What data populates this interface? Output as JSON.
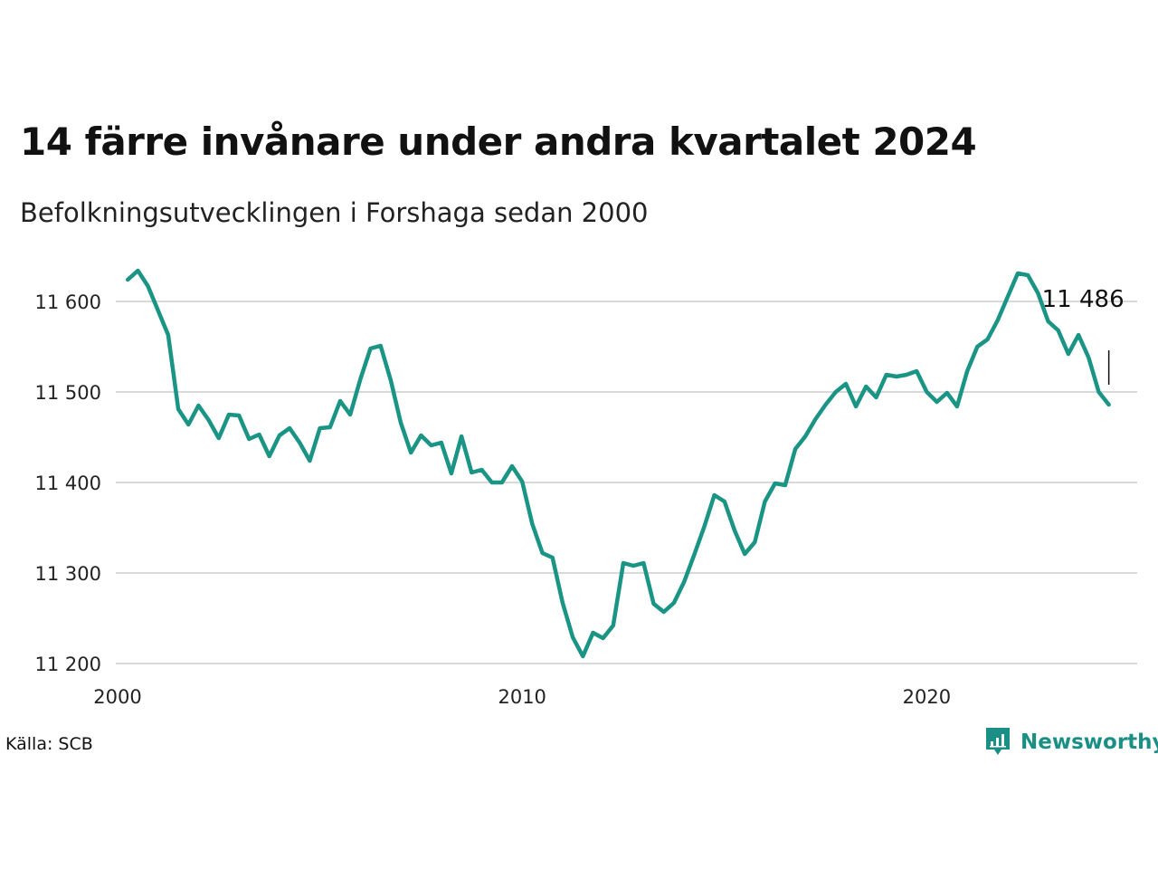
{
  "header": {
    "title": "14 färre invånare under andra kvartalet 2024",
    "subtitle": "Befolkningsutvecklingen i Forshaga sedan 2000"
  },
  "footer": {
    "source": "Källa: SCB",
    "brand": "Newsworthy",
    "brand_icon": "bar-chart-speech-bubble-icon"
  },
  "colors": {
    "line": "#1a9484",
    "grid": "#d9d9d9",
    "brand": "#1a8f85"
  },
  "chart_data": {
    "type": "line",
    "title": "14 färre invånare under andra kvartalet 2024",
    "subtitle": "Befolkningsutvecklingen i Forshaga sedan 2000",
    "x_unit": "quarter end (decimal year)",
    "xlim": [
      2000,
      2025
    ],
    "ylim": [
      11200,
      11640
    ],
    "y_ticks": [
      11200,
      11300,
      11400,
      11500,
      11600
    ],
    "y_tick_labels": [
      "11 200",
      "11 300",
      "11 400",
      "11 500",
      "11 600"
    ],
    "x_ticks": [
      2000,
      2010,
      2020
    ],
    "x_tick_labels": [
      "2000",
      "2010",
      "2020"
    ],
    "grid": "horizontal",
    "annotation": {
      "text": "11 486",
      "x": 2024.5,
      "y": 11486
    },
    "series": [
      {
        "x": [
          2000.25,
          2000.5,
          2000.75,
          2001.0,
          2001.25,
          2001.5,
          2001.75,
          2002.0,
          2002.25,
          2002.5,
          2002.75,
          2003.0,
          2003.25,
          2003.5,
          2003.75,
          2004.0,
          2004.25,
          2004.5,
          2004.75,
          2005.0,
          2005.25,
          2005.5,
          2005.75,
          2006.0,
          2006.25,
          2006.5,
          2006.75,
          2007.0,
          2007.25,
          2007.5,
          2007.75,
          2008.0,
          2008.25,
          2008.5,
          2008.75,
          2009.0,
          2009.25,
          2009.5,
          2009.75,
          2010.0,
          2010.25,
          2010.5,
          2010.75,
          2011.0,
          2011.25,
          2011.5,
          2011.75,
          2012.0,
          2012.25,
          2012.5,
          2012.75,
          2013.0,
          2013.25,
          2013.5,
          2013.75,
          2014.0,
          2014.25,
          2014.5,
          2014.75,
          2015.0,
          2015.25,
          2015.5,
          2015.75,
          2016.0,
          2016.25,
          2016.5,
          2016.75,
          2017.0,
          2017.25,
          2017.5,
          2017.75,
          2018.0,
          2018.25,
          2018.5,
          2018.75,
          2019.0,
          2019.25,
          2019.5,
          2019.75,
          2020.0,
          2020.25,
          2020.5,
          2020.75,
          2021.0,
          2021.25,
          2021.5,
          2021.75,
          2022.0,
          2022.25,
          2022.5,
          2022.75,
          2023.0,
          2023.25,
          2023.5,
          2023.75,
          2024.0,
          2024.25,
          2024.5
        ],
        "values": [
          11624,
          11634,
          11617,
          11590,
          11563,
          11481,
          11464,
          11485,
          11469,
          11449,
          11475,
          11474,
          11448,
          11453,
          11429,
          11452,
          11460,
          11444,
          11424,
          11460,
          11461,
          11490,
          11475,
          11514,
          11548,
          11551,
          11513,
          11466,
          11433,
          11452,
          11441,
          11444,
          11410,
          11451,
          11411,
          11414,
          11400,
          11400,
          11418,
          11401,
          11354,
          11322,
          11317,
          11267,
          11229,
          11208,
          11234,
          11228,
          11242,
          11311,
          11308,
          11311,
          11266,
          11257,
          11267,
          11290,
          11320,
          11351,
          11386,
          11379,
          11347,
          11321,
          11334,
          11379,
          11399,
          11397,
          11437,
          11451,
          11470,
          11486,
          11500,
          11509,
          11484,
          11506,
          11494,
          11519,
          11517,
          11519,
          11523,
          11500,
          11489,
          11499,
          11484,
          11523,
          11550,
          11558,
          11579,
          11605,
          11631,
          11629,
          11609,
          11578,
          11568,
          11542,
          11563,
          11538,
          11500,
          11486
        ]
      }
    ]
  }
}
